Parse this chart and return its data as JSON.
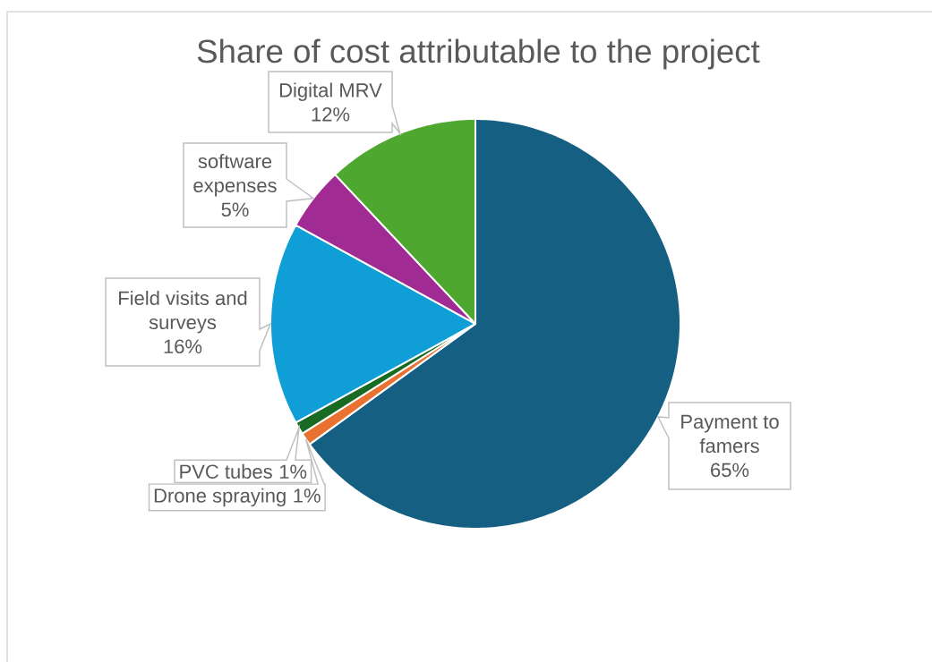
{
  "chart_data": {
    "type": "pie",
    "title": "Share of cost attributable to the project",
    "categories": [
      "Payment to famers",
      "Drone spraying",
      "PVC tubes",
      "Field visits and surveys",
      "software expenses",
      "Digital MRV"
    ],
    "values": [
      65,
      1,
      1,
      16,
      5,
      12
    ],
    "colors": [
      "#156082",
      "#e97132",
      "#196b24",
      "#0f9ed5",
      "#a02b93",
      "#4ea72e"
    ],
    "value_labels": [
      "65%",
      "1%",
      "1%",
      "16%",
      "5%",
      "12%"
    ]
  }
}
